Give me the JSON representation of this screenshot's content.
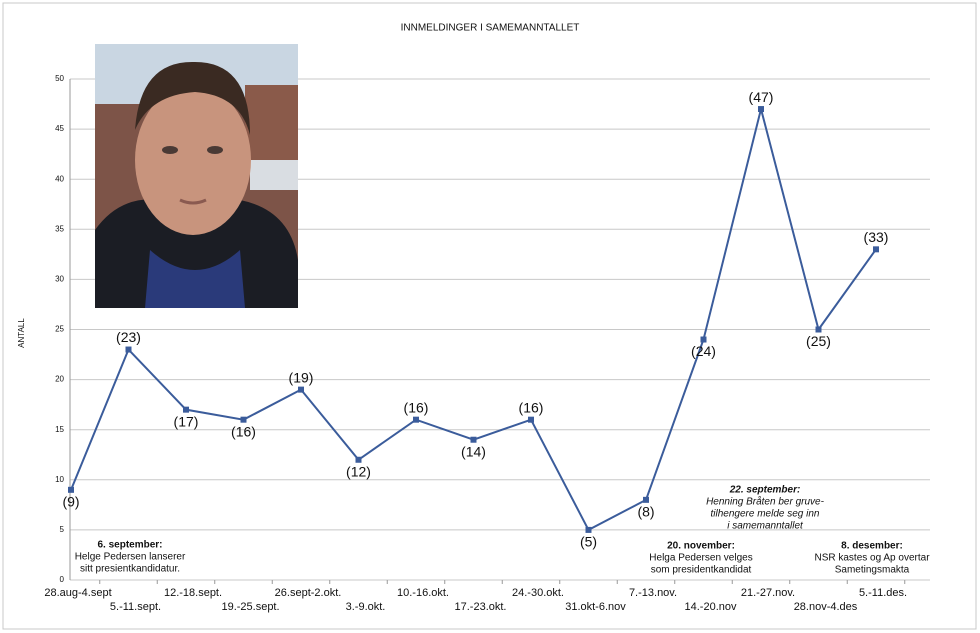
{
  "chart_data": {
    "type": "line",
    "title": "INNMELDINGER I SAMEMANNTALLET",
    "y_label": "ANTALL",
    "categories": [
      "28.aug-4.sept",
      "5.-11.sept.",
      "12.-18.sept.",
      "19.-25.sept.",
      "26.sept-2.okt.",
      "3.-9.okt.",
      "10.-16.okt.",
      "17.-23.okt.",
      "24.-30.okt.",
      "31.okt-6.nov",
      "7.-13.nov.",
      "14.-20.nov",
      "21.-27.nov.",
      "28.nov-4.des",
      "5.-11.des."
    ],
    "series": [
      {
        "name": "Innmeldinger",
        "color": "#3b5c9b",
        "values": [
          9,
          23,
          17,
          16,
          19,
          12,
          16,
          14,
          16,
          5,
          8,
          24,
          47,
          25,
          33
        ],
        "value_labels": [
          "(9)",
          "(23)",
          "(17)",
          "(16)",
          "(19)",
          "(12)",
          "(16)",
          "(14)",
          "(16)",
          "(5)",
          "(8)",
          "(24)",
          "(47)",
          "(25)",
          "(33)"
        ]
      }
    ],
    "ylim": [
      0,
      50
    ],
    "yticks": [
      0,
      5,
      10,
      15,
      20,
      25,
      30,
      35,
      40,
      45,
      50
    ],
    "grid": true,
    "annotations": [
      {
        "heading": "6. september:",
        "lines": [
          "Helge Pedersen lanserer",
          "sitt presientkandidatur."
        ]
      },
      {
        "heading": "22. september:",
        "lines": [
          "Henning Bråten ber gruve-",
          "tilhengere melde seg inn",
          "i samemanntallet"
        ]
      },
      {
        "heading": "20. november:",
        "lines": [
          "Helga Pedersen velges",
          "som presidentkandidat"
        ]
      },
      {
        "heading": "8. desember:",
        "lines": [
          "NSR kastes og Ap overtar",
          "Sametingsmakta"
        ]
      }
    ]
  }
}
